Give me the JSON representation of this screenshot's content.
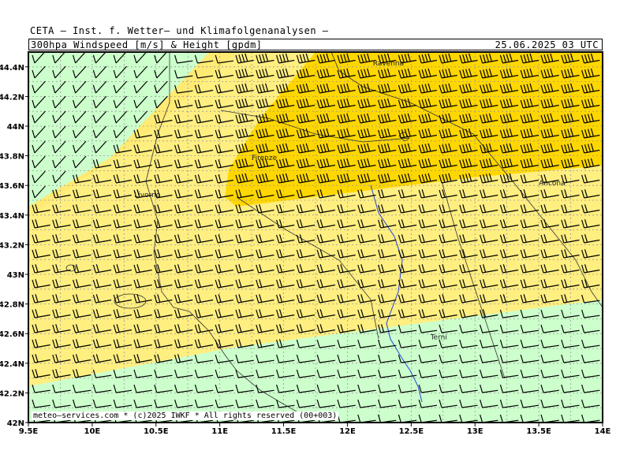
{
  "header": {
    "institute": "CETA – Inst. f. Wetter– und Klimafolgenanalysen –",
    "product": "300hpa_Windspeed_[m/s]_&_Height_[gpdm]",
    "datetime": "25.06.2025 03 UTC"
  },
  "footer": {
    "copyright": "meteo–services.com * (c)2025 IWKF * All rights reserved (00+003)"
  },
  "map": {
    "lon_range": [
      9.5,
      14.0
    ],
    "lat_range": [
      42.0,
      44.5
    ],
    "lon_ticks": [
      "9.5E",
      "10E",
      "10.5E",
      "11E",
      "11.5E",
      "12E",
      "12.5E",
      "13E",
      "13.5E",
      "14E"
    ],
    "lat_ticks": [
      "42N",
      "42.2N",
      "42.4N",
      "42.6N",
      "42.8N",
      "43N",
      "43.2N",
      "43.4N",
      "43.6N",
      "43.8N",
      "44N",
      "44.2N",
      "44.4N"
    ],
    "cities": [
      {
        "name": "Ravenna",
        "lon": 12.2,
        "lat": 44.41
      },
      {
        "name": "Firenze",
        "lon": 11.25,
        "lat": 43.77
      },
      {
        "name": "Ancona",
        "lon": 13.5,
        "lat": 43.6
      },
      {
        "name": "Livorno",
        "lon": 10.33,
        "lat": 43.52
      },
      {
        "name": "Terni",
        "lon": 12.65,
        "lat": 42.56
      }
    ],
    "colors": {
      "low_wind": "#ccffcc",
      "mid_wind": "#ffee80",
      "high_wind": "#ffd700",
      "grid": "#999999",
      "barbs": "#000000",
      "rivers": "#2244dd"
    },
    "wind_zones": [
      "low",
      "mid",
      "high"
    ]
  }
}
